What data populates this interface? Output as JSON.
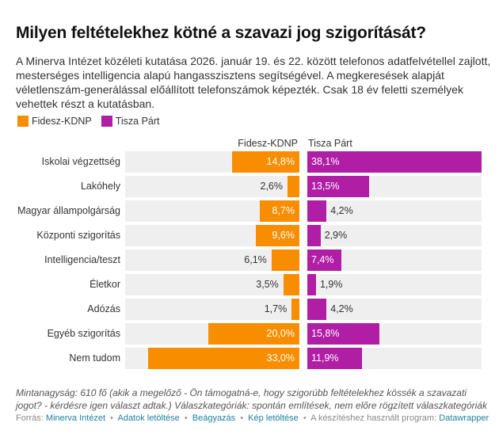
{
  "title": "Milyen feltételekhez kötné a szavazi jog szigorítását?",
  "description": "A Minerva Intézet közéleti kutatása 2026. január 19. és 22. között telefonos adatfelvétellel zajlott, mesterséges intelligencia alapú hangasszisztens segítségével. A megkeresések alapját véletlenszám-generálással előállított telefonszámok képezték. Csak 18 év feletti személyek vehettek részt a kutatásban.",
  "colors": {
    "fidesz": "#f88d00",
    "tisza": "#b01ea6",
    "panel_bg": "#efefef"
  },
  "chart_data": {
    "type": "bar",
    "orientation": "horizontal",
    "layout": "split-bars",
    "title": "Milyen feltételekhez kötné a szavazi jog szigorítását?",
    "categories": [
      "Iskolai végzettség",
      "Lakóhely",
      "Magyar állampolgárság",
      "Központi szigorítás",
      "Intelligencia/teszt",
      "Életkor",
      "Adózás",
      "Egyéb szigorítás",
      "Nem tudom"
    ],
    "series": [
      {
        "name": "Fidesz-KDNP",
        "color": "#f88d00",
        "values": [
          14.8,
          2.6,
          8.7,
          9.6,
          6.1,
          3.5,
          1.7,
          20.0,
          33.0
        ],
        "labels": [
          "14,8%",
          "2,6%",
          "8,7%",
          "9,6%",
          "6,1%",
          "3,5%",
          "1,7%",
          "20,0%",
          "33,0%"
        ]
      },
      {
        "name": "Tisza Párt",
        "color": "#b01ea6",
        "values": [
          38.1,
          13.5,
          4.2,
          2.9,
          7.4,
          1.9,
          4.2,
          15.8,
          11.9
        ],
        "labels": [
          "38,1%",
          "13,5%",
          "4,2%",
          "2,9%",
          "7,4%",
          "1,9%",
          "4,2%",
          "15,8%",
          "11,9%"
        ]
      }
    ],
    "xlim": [
      0,
      38.1
    ],
    "legend": "top-left",
    "unit": "%"
  },
  "legend": [
    {
      "name": "Fidesz-KDNP",
      "color": "#f88d00"
    },
    {
      "name": "Tisza Párt",
      "color": "#b01ea6"
    }
  ],
  "column_headers": {
    "left": "Fidesz-KDNP",
    "right": "Tisza Párt"
  },
  "notes": "Mintanagyság: 610 fő (akik a megelőző - Ön támogatná-e, hogy szigorúbb feltételekhez kössék a szavazati jogot? - kérdésre igen választ adtak.)  Válaszkategóriák: spontán említések, nem előre rögzített válaszkategóriák",
  "footer": {
    "source_label": "Forrás:",
    "source": "Minerva Intézet",
    "download_data": "Adatok letöltése",
    "embed": "Beágyazás",
    "download_image": "Kép letöltése",
    "made_with_label": "A készítéshez használt program:",
    "made_with": "Datawrapper",
    "separator": "•"
  }
}
